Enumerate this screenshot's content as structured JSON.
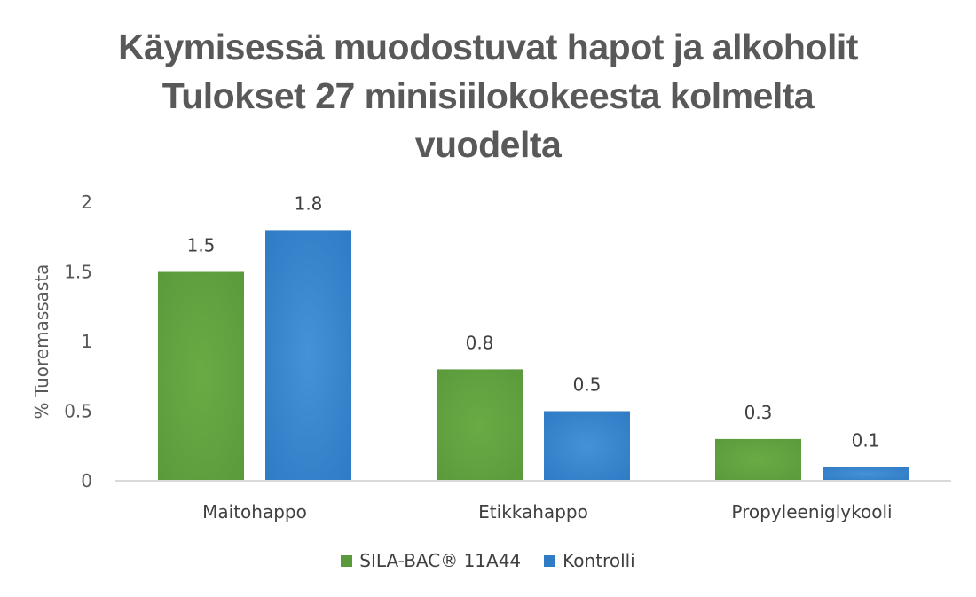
{
  "colors": {
    "series_1": "#5b9a3c",
    "series_1_light": "#6aab44",
    "series_2": "#2f7bc4",
    "series_2_light": "#4592d8",
    "axis": "#d9d9d9"
  },
  "chart_data": {
    "type": "bar",
    "title": [
      "Käymisessä muodostuvat hapot ja alkoholit",
      "Tulokset 27 minisiilokokeesta kolmelta",
      "vuodelta"
    ],
    "xlabel": "",
    "ylabel": "% Tuoremassasta",
    "ylim": [
      0,
      2
    ],
    "yticks": [
      "0",
      "0.5",
      "1",
      "1.5",
      "2"
    ],
    "categories": [
      "Maitohappo",
      "Etikkahappo",
      "Propyleeniglykooli"
    ],
    "series": [
      {
        "name": "SILA-BAC® 11A44",
        "values": [
          1.5,
          0.8,
          0.3
        ],
        "labels": [
          "1.5",
          "0.8",
          "0.3"
        ]
      },
      {
        "name": "Kontrolli",
        "values": [
          1.8,
          0.5,
          0.1
        ],
        "labels": [
          "1.8",
          "0.5",
          "0.1"
        ]
      }
    ],
    "grid": false,
    "legend_position": "bottom"
  }
}
